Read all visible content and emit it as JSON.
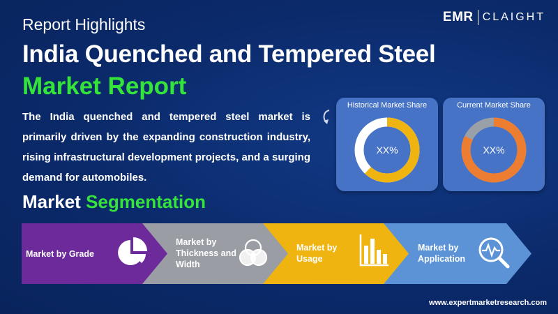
{
  "brand": {
    "logo_left": "EMR",
    "logo_right": "CLAIGHT"
  },
  "header": {
    "kicker": "Report Highlights",
    "title_line1": "India Quenched and Tempered Steel",
    "title_line2": "Market Report"
  },
  "summary": "The India quenched and tempered steel market is primarily driven by the expanding construction industry, rising infrastructural development projects, and a surging demand for automobiles.",
  "segmentation": {
    "title_white": "Market",
    "title_green": "Segmentation",
    "items": [
      {
        "label": "Market by Grade",
        "icon": "pie-chart-icon",
        "color": "#6c2a9a"
      },
      {
        "label": "Market by Thickness and Width",
        "icon": "venn-icon",
        "color": "#9a9da3"
      },
      {
        "label": "Market by Usage",
        "icon": "bar-chart-icon",
        "color": "#efb40f"
      },
      {
        "label": "Market by Application",
        "icon": "magnifier-chart-icon",
        "color": "#5b93d6"
      }
    ]
  },
  "shares": [
    {
      "label": "Historical Market Share",
      "value": "XX%",
      "ring_color": "#efb40f",
      "fill_fraction": 0.62
    },
    {
      "label": "Current Market Share",
      "value": "XX%",
      "ring_color": "#ed7d31",
      "fill_fraction": 0.82
    }
  ],
  "footer": {
    "website": "www.expertmarketresearch.com"
  },
  "colors": {
    "background": "#0b2a6b",
    "accent_green": "#35e43a",
    "card": "#4673c6"
  }
}
